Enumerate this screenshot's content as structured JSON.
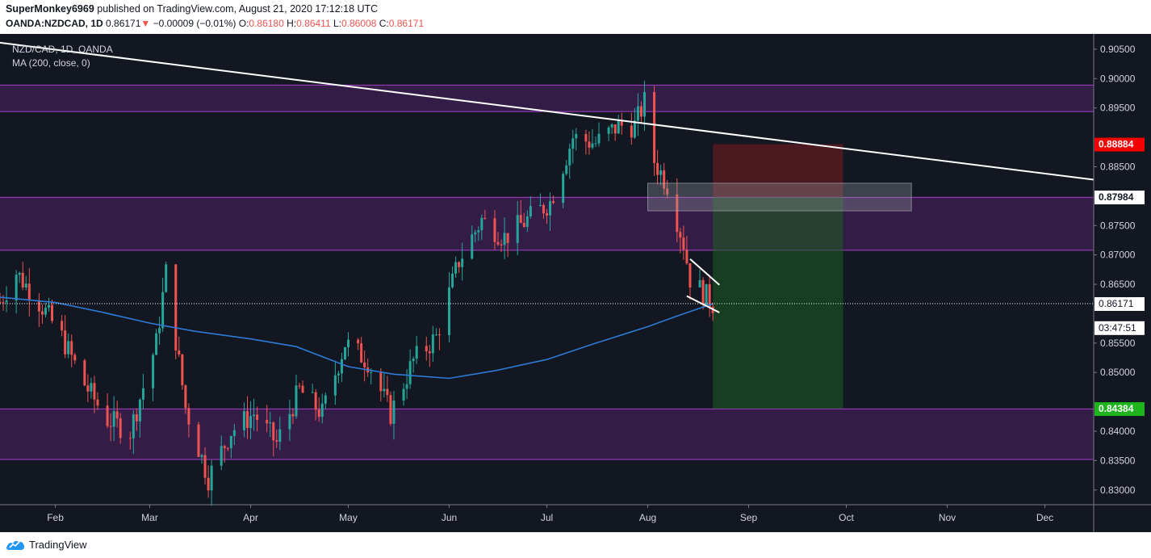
{
  "header": {
    "author": "SuperMonkey6969",
    "published_text": "published on TradingView.com, August 21, 2020 17:12:18 UTC",
    "symbol": "OANDA:NZDCAD, 1D",
    "last": "0.86171",
    "arrow": "▼",
    "change": "−0.00009 (−0.01%)",
    "o_label": "O:",
    "o_value": "0.86180",
    "h_label": "H:",
    "h_value": "0.86411",
    "l_label": "L:",
    "l_value": "0.86008",
    "c_label": "C:",
    "c_value": "0.86171"
  },
  "legend": {
    "title": "NZD/CAD, 1D, OANDA",
    "ma": "MA (200, close, 0)"
  },
  "footer": {
    "brand": "TradingView",
    "icon": "tradingview-logo-icon"
  },
  "colors": {
    "bg": "#131722",
    "up": "#26a69a",
    "down": "#ef5350",
    "ma": "#2d7bd6",
    "zone_fill": "#3a1f4d",
    "zone_line": "#a63ec9",
    "stop": "#5c1a24",
    "target": "#12401f",
    "grid_text": "#d1d4dc"
  },
  "chart_data": {
    "type": "candlestick",
    "title": "NZD/CAD, 1D, OANDA",
    "x_range": [
      "2020-01-15",
      "2020-12-16"
    ],
    "y_range": [
      0.8275,
      0.9076
    ],
    "x_ticks": [
      {
        "label": "Feb",
        "date": "2020-02-01"
      },
      {
        "label": "Mar",
        "date": "2020-03-01"
      },
      {
        "label": "Apr",
        "date": "2020-04-01"
      },
      {
        "label": "May",
        "date": "2020-05-01"
      },
      {
        "label": "Jun",
        "date": "2020-06-01"
      },
      {
        "label": "Jul",
        "date": "2020-07-01"
      },
      {
        "label": "Aug",
        "date": "2020-08-01"
      },
      {
        "label": "Sep",
        "date": "2020-09-01"
      },
      {
        "label": "Oct",
        "date": "2020-10-01"
      },
      {
        "label": "Nov",
        "date": "2020-11-01"
      },
      {
        "label": "Dec",
        "date": "2020-12-01"
      }
    ],
    "y_ticks": [
      "0.90500",
      "0.90000",
      "0.89500",
      "0.88500",
      "0.87500",
      "0.87000",
      "0.86500",
      "0.85500",
      "0.85000",
      "0.84000",
      "0.83500",
      "0.83000"
    ],
    "price_labels": [
      {
        "label": "0.88884",
        "value": 0.88884,
        "style": "stop"
      },
      {
        "label": "0.87984",
        "value": 0.87984,
        "style": "entry"
      },
      {
        "label": "0.86171",
        "value": 0.86171,
        "style": "last"
      },
      {
        "label": "03:47:51",
        "value": 0.85885,
        "style": "countdown"
      },
      {
        "label": "0.84384",
        "value": 0.84384,
        "style": "target"
      }
    ],
    "last_price": 0.86171,
    "zones": [
      {
        "low": 0.8944,
        "high": 0.8989
      },
      {
        "low": 0.8708,
        "high": 0.8798
      },
      {
        "low": 0.8352,
        "high": 0.8438
      }
    ],
    "position": {
      "start": "2020-08-21",
      "end": "2020-09-30",
      "entry": 0.87984,
      "stop": 0.88884,
      "target": 0.84384
    },
    "grey_box": {
      "start": "2020-08-01",
      "end": "2020-10-21",
      "low": 0.8775,
      "high": 0.8822
    },
    "trendline": {
      "p1": {
        "date": "2020-01-15",
        "price": 0.9061
      },
      "p2": {
        "date": "2020-12-16",
        "price": 0.8828
      }
    },
    "wedge": [
      {
        "d1": "2020-08-14",
        "p1": 0.8693,
        "d2": "2020-08-23",
        "p2": 0.8649
      },
      {
        "d1": "2020-08-13",
        "p1": 0.863,
        "d2": "2020-08-23",
        "p2": 0.8602
      }
    ],
    "ma200": [
      {
        "date": "2020-01-15",
        "price": 0.8628
      },
      {
        "date": "2020-02-01",
        "price": 0.8619
      },
      {
        "date": "2020-02-15",
        "price": 0.8603
      },
      {
        "date": "2020-03-01",
        "price": 0.8584
      },
      {
        "date": "2020-03-15",
        "price": 0.857
      },
      {
        "date": "2020-04-01",
        "price": 0.8557
      },
      {
        "date": "2020-04-15",
        "price": 0.8544
      },
      {
        "date": "2020-05-01",
        "price": 0.851
      },
      {
        "date": "2020-05-15",
        "price": 0.8497
      },
      {
        "date": "2020-06-01",
        "price": 0.849
      },
      {
        "date": "2020-06-15",
        "price": 0.8503
      },
      {
        "date": "2020-07-01",
        "price": 0.8522
      },
      {
        "date": "2020-07-15",
        "price": 0.8548
      },
      {
        "date": "2020-08-01",
        "price": 0.8578
      },
      {
        "date": "2020-08-10",
        "price": 0.8596
      },
      {
        "date": "2020-08-21",
        "price": 0.8617
      }
    ],
    "anchors": [
      {
        "date": "2020-01-15",
        "price": 0.862
      },
      {
        "date": "2020-01-20",
        "price": 0.867
      },
      {
        "date": "2020-01-27",
        "price": 0.862
      },
      {
        "date": "2020-02-03",
        "price": 0.856
      },
      {
        "date": "2020-02-10",
        "price": 0.848
      },
      {
        "date": "2020-02-17",
        "price": 0.842
      },
      {
        "date": "2020-02-24",
        "price": 0.84
      },
      {
        "date": "2020-03-03",
        "price": 0.855
      },
      {
        "date": "2020-03-06",
        "price": 0.867
      },
      {
        "date": "2020-03-12",
        "price": 0.844
      },
      {
        "date": "2020-03-19",
        "price": 0.832
      },
      {
        "date": "2020-03-26",
        "price": 0.84
      },
      {
        "date": "2020-04-02",
        "price": 0.843
      },
      {
        "date": "2020-04-09",
        "price": 0.838
      },
      {
        "date": "2020-04-16",
        "price": 0.847
      },
      {
        "date": "2020-04-23",
        "price": 0.843
      },
      {
        "date": "2020-04-30",
        "price": 0.855
      },
      {
        "date": "2020-05-07",
        "price": 0.852
      },
      {
        "date": "2020-05-14",
        "price": 0.843
      },
      {
        "date": "2020-05-21",
        "price": 0.852
      },
      {
        "date": "2020-05-28",
        "price": 0.856
      },
      {
        "date": "2020-06-04",
        "price": 0.869
      },
      {
        "date": "2020-06-11",
        "price": 0.876
      },
      {
        "date": "2020-06-18",
        "price": 0.873
      },
      {
        "date": "2020-06-25",
        "price": 0.876
      },
      {
        "date": "2020-07-02",
        "price": 0.879
      },
      {
        "date": "2020-07-09",
        "price": 0.89
      },
      {
        "date": "2020-07-16",
        "price": 0.889
      },
      {
        "date": "2020-07-23",
        "price": 0.892
      },
      {
        "date": "2020-07-28",
        "price": 0.892
      },
      {
        "date": "2020-07-31",
        "price": 0.896
      },
      {
        "date": "2020-08-03",
        "price": 0.886
      },
      {
        "date": "2020-08-07",
        "price": 0.882
      },
      {
        "date": "2020-08-12",
        "price": 0.872
      },
      {
        "date": "2020-08-14",
        "price": 0.866
      },
      {
        "date": "2020-08-21",
        "price": 0.8617
      }
    ]
  }
}
